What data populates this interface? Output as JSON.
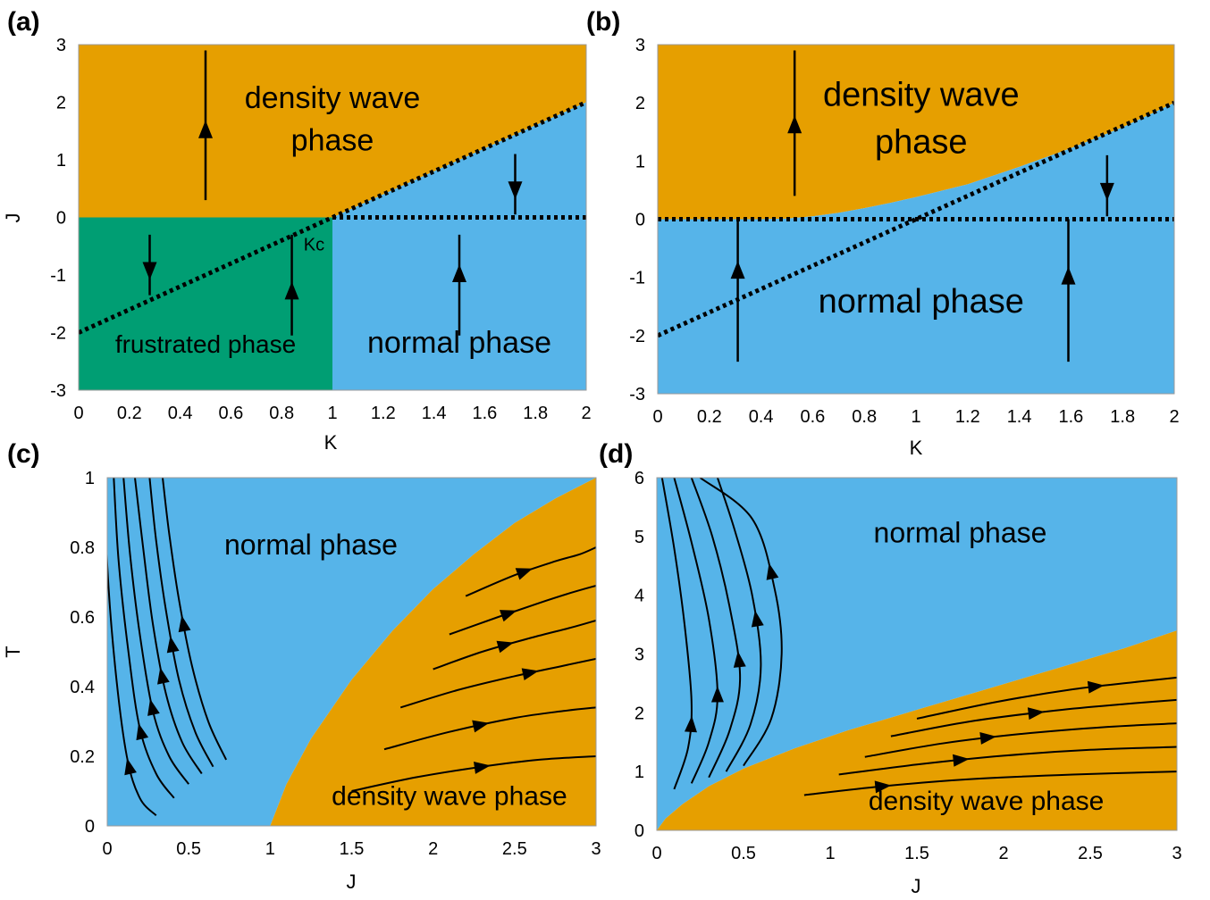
{
  "colors": {
    "orange": "#E69F00",
    "blue": "#56B4E9",
    "green": "#009E73",
    "black": "#000000"
  },
  "chart_data": [
    {
      "type": "area",
      "panel_label": "(a)",
      "xlabel": "K",
      "ylabel": "J",
      "xlim": [
        0,
        2
      ],
      "ylim": [
        -3,
        3
      ],
      "xticks": [
        0,
        0.2,
        0.4,
        0.6,
        0.8,
        1,
        1.2,
        1.4,
        1.6,
        1.8,
        2
      ],
      "yticks": [
        -3,
        -2,
        -1,
        0,
        1,
        2,
        3
      ],
      "regions": [
        {
          "name": "density wave phase",
          "label": "density wave\nphase",
          "label_at": [
            1.0,
            1.9
          ],
          "color": "orange",
          "polygon": [
            [
              0,
              0
            ],
            [
              1,
              0
            ],
            [
              2,
              2
            ],
            [
              2,
              3
            ],
            [
              0,
              3
            ]
          ]
        },
        {
          "name": "normal phase",
          "label": "normal phase",
          "label_at": [
            1.5,
            -2.35
          ],
          "color": "blue",
          "polygon": [
            [
              1,
              -3
            ],
            [
              2,
              -3
            ],
            [
              2,
              2
            ],
            [
              1,
              0
            ]
          ]
        },
        {
          "name": "frustrated phase",
          "label": "frustrated phase",
          "label_at": [
            0.5,
            -2.35
          ],
          "color": "green",
          "polygon": [
            [
              0,
              -3
            ],
            [
              1,
              -3
            ],
            [
              1,
              0
            ],
            [
              0,
              0
            ]
          ]
        }
      ],
      "dashed_lines": [
        {
          "x": [
            0,
            2
          ],
          "y": [
            -2,
            2
          ]
        },
        {
          "x": [
            1,
            2
          ],
          "y": [
            0,
            0
          ]
        }
      ],
      "arrows": [
        {
          "x": 0.5,
          "from": 0.3,
          "to": 2.9,
          "head_at": 1.5,
          "dir": "up"
        },
        {
          "x": 0.28,
          "from": -0.3,
          "to": -1.35,
          "head_at": -0.9,
          "dir": "down"
        },
        {
          "x": 0.84,
          "from": -2.05,
          "to": -0.3,
          "head_at": -1.3,
          "dir": "up"
        },
        {
          "x": 1.5,
          "from": -2.05,
          "to": -0.3,
          "head_at": -1.0,
          "dir": "up"
        },
        {
          "x": 1.72,
          "from": 1.1,
          "to": 0.05,
          "head_at": 0.5,
          "dir": "down"
        }
      ],
      "annotations": [
        {
          "text": "Kc",
          "at": [
            0.95,
            -0.45
          ]
        }
      ]
    },
    {
      "type": "area",
      "panel_label": "(b)",
      "xlabel": "K",
      "ylabel": "J",
      "xlim": [
        0,
        2
      ],
      "ylim": [
        -3,
        3
      ],
      "xticks": [
        0,
        0.2,
        0.4,
        0.6,
        0.8,
        1,
        1.2,
        1.4,
        1.6,
        1.8,
        2
      ],
      "yticks": [
        -3,
        -2,
        -1,
        0,
        1,
        2,
        3
      ],
      "boundary": {
        "x": [
          0,
          0.2,
          0.4,
          0.5,
          0.6,
          0.7,
          0.8,
          0.9,
          1.0,
          1.2,
          1.4,
          1.6,
          1.8,
          2.0
        ],
        "y": [
          0,
          0,
          0,
          0.01,
          0.05,
          0.11,
          0.19,
          0.28,
          0.38,
          0.6,
          0.9,
          1.22,
          1.58,
          2.0
        ]
      },
      "regions": [
        {
          "name": "density wave phase",
          "label": "density wave\nphase",
          "label_at": [
            1.02,
            1.95
          ],
          "color": "orange",
          "side": "above"
        },
        {
          "name": "normal phase",
          "label": "normal phase",
          "label_at": [
            1.02,
            -1.6
          ],
          "color": "blue",
          "side": "below"
        }
      ],
      "dashed_lines": [
        {
          "x": [
            0,
            2
          ],
          "y": [
            -2,
            2
          ]
        },
        {
          "x": [
            0,
            2
          ],
          "y": [
            0,
            0
          ]
        }
      ],
      "arrows": [
        {
          "x": 0.53,
          "from": 0.4,
          "to": 2.9,
          "head_at": 1.6,
          "dir": "up"
        },
        {
          "x": 0.31,
          "from": -2.45,
          "to": 0.0,
          "head_at": -0.9,
          "dir": "up"
        },
        {
          "x": 1.59,
          "from": -2.45,
          "to": 0.0,
          "head_at": -1.0,
          "dir": "up"
        },
        {
          "x": 1.74,
          "from": 1.1,
          "to": 0.05,
          "head_at": 0.5,
          "dir": "down"
        }
      ]
    },
    {
      "type": "area",
      "panel_label": "(c)",
      "xlabel": "J",
      "ylabel": "T",
      "xlim": [
        0,
        3
      ],
      "ylim": [
        0,
        1
      ],
      "xticks": [
        0,
        0.5,
        1,
        1.5,
        2,
        2.5,
        3
      ],
      "yticks": [
        0,
        0.2,
        0.4,
        0.6,
        0.8,
        1
      ],
      "boundary": {
        "x": [
          1,
          1.1,
          1.25,
          1.5,
          1.75,
          2,
          2.25,
          2.5,
          2.75,
          3.0
        ],
        "y": [
          0,
          0.12,
          0.25,
          0.42,
          0.56,
          0.68,
          0.78,
          0.87,
          0.94,
          1.0
        ]
      },
      "regions": [
        {
          "name": "normal phase",
          "label": "normal phase",
          "label_at": [
            1.25,
            0.78
          ],
          "color": "blue",
          "side": "above"
        },
        {
          "name": "density wave phase",
          "label": "density wave phase",
          "label_at": [
            2.1,
            0.06
          ],
          "color": "orange",
          "side": "below"
        }
      ],
      "flow_lines": [
        {
          "x": [
            0.3,
            0.2,
            0.12,
            0.05,
            0.0,
            -0.01
          ],
          "y": [
            0.03,
            0.08,
            0.2,
            0.45,
            0.75,
            1.0
          ],
          "arrow_at": 0.17
        },
        {
          "x": [
            0.41,
            0.3,
            0.2,
            0.13,
            0.07,
            0.04
          ],
          "y": [
            0.08,
            0.15,
            0.28,
            0.5,
            0.76,
            1.0
          ],
          "arrow_at": 0.27
        },
        {
          "x": [
            0.5,
            0.38,
            0.28,
            0.2,
            0.14,
            0.1
          ],
          "y": [
            0.12,
            0.2,
            0.33,
            0.55,
            0.78,
            1.0
          ],
          "arrow_at": 0.34
        },
        {
          "x": [
            0.58,
            0.46,
            0.36,
            0.28,
            0.22,
            0.17
          ],
          "y": [
            0.15,
            0.24,
            0.38,
            0.58,
            0.8,
            1.0
          ],
          "arrow_at": 0.43
        },
        {
          "x": [
            0.65,
            0.54,
            0.44,
            0.36,
            0.3,
            0.26
          ],
          "y": [
            0.17,
            0.27,
            0.42,
            0.62,
            0.82,
            1.0
          ],
          "arrow_at": 0.52
        },
        {
          "x": [
            0.73,
            0.62,
            0.52,
            0.44,
            0.38,
            0.34
          ],
          "y": [
            0.19,
            0.3,
            0.46,
            0.65,
            0.84,
            1.0
          ],
          "arrow_at": 0.58
        },
        {
          "x": [
            1.5,
            1.9,
            2.3,
            2.65,
            3.0
          ],
          "y": [
            0.1,
            0.14,
            0.17,
            0.19,
            0.2
          ],
          "arrow_at": 0.17
        },
        {
          "x": [
            1.7,
            2.1,
            2.5,
            2.8,
            3.0
          ],
          "y": [
            0.22,
            0.27,
            0.31,
            0.33,
            0.34
          ],
          "arrow_at": 0.29
        },
        {
          "x": [
            1.8,
            2.15,
            2.5,
            2.8,
            3.0
          ],
          "y": [
            0.34,
            0.39,
            0.43,
            0.46,
            0.48
          ],
          "arrow_at": 0.44
        },
        {
          "x": [
            2.0,
            2.3,
            2.6,
            2.85,
            3.0
          ],
          "y": [
            0.45,
            0.5,
            0.54,
            0.57,
            0.59
          ],
          "arrow_at": 0.52
        },
        {
          "x": [
            2.1,
            2.4,
            2.65,
            2.85,
            3.0
          ],
          "y": [
            0.55,
            0.6,
            0.64,
            0.67,
            0.69
          ],
          "arrow_at": 0.61
        },
        {
          "x": [
            2.2,
            2.5,
            2.75,
            2.9,
            3.0
          ],
          "y": [
            0.66,
            0.72,
            0.76,
            0.78,
            0.8
          ],
          "arrow_at": 0.73
        }
      ]
    },
    {
      "type": "area",
      "panel_label": "(d)",
      "xlabel": "J",
      "ylabel": "",
      "xlim": [
        0,
        3
      ],
      "ylim": [
        0,
        6
      ],
      "xticks": [
        0,
        0.5,
        1,
        1.5,
        2,
        2.5,
        3
      ],
      "yticks": [
        0,
        1,
        2,
        3,
        4,
        5,
        6
      ],
      "boundary": {
        "x": [
          0,
          0.05,
          0.15,
          0.3,
          0.5,
          0.8,
          1.1,
          1.5,
          1.9,
          2.3,
          2.7,
          3.0
        ],
        "y": [
          0,
          0.2,
          0.45,
          0.75,
          1.05,
          1.4,
          1.7,
          2.05,
          2.4,
          2.75,
          3.1,
          3.4
        ]
      },
      "regions": [
        {
          "name": "normal phase",
          "label": "normal phase",
          "label_at": [
            1.75,
            4.9
          ],
          "color": "blue",
          "side": "above"
        },
        {
          "name": "density wave phase",
          "label": "density wave phase",
          "label_at": [
            1.9,
            0.35
          ],
          "color": "orange",
          "side": "below"
        }
      ],
      "flow_lines": [
        {
          "x": [
            0.1,
            0.18,
            0.2,
            0.16,
            0.1,
            0.03
          ],
          "y": [
            0.7,
            1.4,
            2.2,
            3.5,
            4.8,
            6.0
          ],
          "arrow_at": 1.8
        },
        {
          "x": [
            0.2,
            0.3,
            0.35,
            0.3,
            0.2,
            0.1
          ],
          "y": [
            0.8,
            1.5,
            2.3,
            3.6,
            4.9,
            6.0
          ],
          "arrow_at": 2.3
        },
        {
          "x": [
            0.3,
            0.42,
            0.48,
            0.42,
            0.32,
            0.2
          ],
          "y": [
            0.9,
            1.7,
            2.6,
            3.8,
            5.0,
            6.0
          ],
          "arrow_at": 2.9
        },
        {
          "x": [
            0.4,
            0.54,
            0.6,
            0.55,
            0.45,
            0.35
          ],
          "y": [
            1.0,
            1.8,
            2.8,
            4.0,
            5.1,
            6.0
          ],
          "arrow_at": 3.6
        },
        {
          "x": [
            0.5,
            0.66,
            0.72,
            0.68,
            0.55,
            0.25
          ],
          "y": [
            1.1,
            1.9,
            3.0,
            4.1,
            5.3,
            6.0
          ],
          "arrow_at": 4.4
        },
        {
          "x": [
            0.85,
            1.3,
            1.8,
            2.4,
            3.0
          ],
          "y": [
            0.6,
            0.75,
            0.87,
            0.95,
            1.0
          ],
          "arrow_at": 0.75
        },
        {
          "x": [
            1.05,
            1.5,
            2.0,
            2.5,
            3.0
          ],
          "y": [
            0.95,
            1.12,
            1.27,
            1.37,
            1.42
          ],
          "arrow_at": 1.2
        },
        {
          "x": [
            1.2,
            1.65,
            2.1,
            2.6,
            3.0
          ],
          "y": [
            1.25,
            1.48,
            1.64,
            1.76,
            1.82
          ],
          "arrow_at": 1.58
        },
        {
          "x": [
            1.35,
            1.8,
            2.3,
            2.7,
            3.0
          ],
          "y": [
            1.6,
            1.85,
            2.04,
            2.15,
            2.22
          ],
          "arrow_at": 2.0
        },
        {
          "x": [
            1.5,
            1.95,
            2.4,
            2.75,
            3.0
          ],
          "y": [
            1.9,
            2.18,
            2.4,
            2.52,
            2.6
          ],
          "arrow_at": 2.45
        }
      ]
    }
  ]
}
